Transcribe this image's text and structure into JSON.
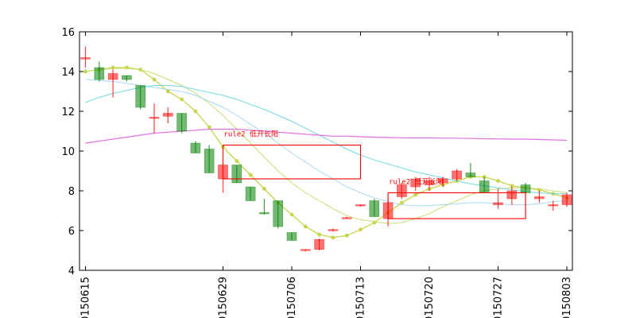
{
  "chart_data": {
    "type": "candlestick",
    "ylim": [
      4,
      16
    ],
    "y_ticks": [
      4,
      6,
      8,
      10,
      12,
      14,
      16
    ],
    "x_tick_labels": [
      {
        "index": 0,
        "label": "20150615"
      },
      {
        "index": 10,
        "label": "20150629"
      },
      {
        "index": 15,
        "label": "20150706"
      },
      {
        "index": 20,
        "label": "20150713"
      },
      {
        "index": 25,
        "label": "20150720"
      },
      {
        "index": 30,
        "label": "20150727"
      },
      {
        "index": 35,
        "label": "20150803"
      }
    ],
    "colors": {
      "up": "#ff0000",
      "down": "#008000"
    },
    "candles": [
      {
        "open": 14.63,
        "high": 15.25,
        "low": 14.2,
        "close": 14.7
      },
      {
        "open": 14.2,
        "high": 14.5,
        "low": 13.5,
        "close": 13.6
      },
      {
        "open": 13.6,
        "high": 14.1,
        "low": 12.7,
        "close": 13.9
      },
      {
        "open": 13.8,
        "high": 13.8,
        "low": 13.5,
        "close": 13.6
      },
      {
        "open": 13.3,
        "high": 13.3,
        "low": 12.1,
        "close": 12.2
      },
      {
        "open": 11.7,
        "high": 12.4,
        "low": 10.9,
        "close": 11.7
      },
      {
        "open": 11.75,
        "high": 12.2,
        "low": 11.4,
        "close": 11.9
      },
      {
        "open": 11.9,
        "high": 11.9,
        "low": 10.9,
        "close": 11.0
      },
      {
        "open": 10.4,
        "high": 10.5,
        "low": 9.9,
        "close": 9.9
      },
      {
        "open": 10.1,
        "high": 10.3,
        "low": 8.9,
        "close": 8.9
      },
      {
        "open": 8.6,
        "high": 9.4,
        "low": 7.9,
        "close": 9.3
      },
      {
        "open": 9.3,
        "high": 9.3,
        "low": 8.4,
        "close": 8.4
      },
      {
        "open": 8.2,
        "high": 8.2,
        "low": 7.5,
        "close": 7.5
      },
      {
        "open": 6.9,
        "high": 7.6,
        "low": 6.8,
        "close": 6.85
      },
      {
        "open": 7.5,
        "high": 7.5,
        "low": 6.1,
        "close": 6.2
      },
      {
        "open": 5.9,
        "high": 5.9,
        "low": 5.5,
        "close": 5.5
      },
      {
        "open": 5.0,
        "high": 5.05,
        "low": 4.95,
        "close": 5.05
      },
      {
        "open": 5.05,
        "high": 5.6,
        "low": 5.0,
        "close": 5.55
      },
      {
        "open": 6.0,
        "high": 6.1,
        "low": 5.95,
        "close": 6.05
      },
      {
        "open": 6.6,
        "high": 6.7,
        "low": 6.6,
        "close": 6.65
      },
      {
        "open": 7.25,
        "high": 7.3,
        "low": 7.2,
        "close": 7.3
      },
      {
        "open": 7.5,
        "high": 7.6,
        "low": 6.7,
        "close": 6.7
      },
      {
        "open": 6.6,
        "high": 7.6,
        "low": 6.2,
        "close": 7.4
      },
      {
        "open": 7.7,
        "high": 8.4,
        "low": 7.6,
        "close": 8.3
      },
      {
        "open": 8.2,
        "high": 8.7,
        "low": 8.0,
        "close": 8.6
      },
      {
        "open": 8.3,
        "high": 8.7,
        "low": 8.0,
        "close": 8.5
      },
      {
        "open": 8.4,
        "high": 8.7,
        "low": 8.2,
        "close": 8.6
      },
      {
        "open": 8.6,
        "high": 9.1,
        "low": 8.5,
        "close": 9.0
      },
      {
        "open": 8.9,
        "high": 9.4,
        "low": 8.7,
        "close": 8.7
      },
      {
        "open": 8.5,
        "high": 8.7,
        "low": 7.9,
        "close": 7.9
      },
      {
        "open": 7.3,
        "high": 8.1,
        "low": 7.1,
        "close": 7.4
      },
      {
        "open": 7.6,
        "high": 8.2,
        "low": 7.3,
        "close": 8.0
      },
      {
        "open": 8.3,
        "high": 8.4,
        "low": 7.8,
        "close": 7.9
      },
      {
        "open": 7.6,
        "high": 8.0,
        "low": 7.4,
        "close": 7.7
      },
      {
        "open": 7.3,
        "high": 7.5,
        "low": 7.0,
        "close": 7.3
      },
      {
        "open": 7.3,
        "high": 7.9,
        "low": 7.2,
        "close": 7.8
      }
    ],
    "lines": [
      {
        "color": "#c8d44a",
        "width": 1.3,
        "markers": true,
        "values": [
          14.0,
          14.1,
          14.2,
          14.2,
          14.1,
          13.6,
          13.0,
          12.6,
          12.0,
          11.2,
          10.2,
          9.5,
          8.8,
          8.1,
          7.4,
          6.8,
          6.2,
          5.8,
          5.65,
          5.75,
          6.05,
          6.4,
          6.9,
          7.4,
          7.8,
          8.1,
          8.3,
          8.5,
          8.7,
          8.7,
          8.5,
          8.25,
          8.15,
          8.05,
          7.85,
          7.65
        ]
      },
      {
        "color": "#c5e070",
        "width": 1.0,
        "markers": false,
        "values": [
          14.0,
          14.1,
          14.15,
          14.15,
          14.1,
          13.9,
          13.6,
          13.3,
          12.9,
          12.4,
          11.8,
          11.1,
          10.4,
          9.7,
          9.0,
          8.4,
          7.9,
          7.5,
          7.1,
          6.75,
          6.55,
          6.45,
          6.35,
          6.4,
          6.6,
          6.85,
          7.2,
          7.5,
          7.8,
          8.0,
          8.1,
          8.15,
          8.15,
          8.1,
          8.0,
          7.9
        ]
      },
      {
        "color": "#a8d8f0",
        "width": 1.0,
        "markers": false,
        "values": [
          13.6,
          13.55,
          13.5,
          13.4,
          13.3,
          13.2,
          13.1,
          13.0,
          12.8,
          12.5,
          12.2,
          11.8,
          11.35,
          10.9,
          10.4,
          9.9,
          9.45,
          9.0,
          8.6,
          8.2,
          7.9,
          7.65,
          7.45,
          7.3,
          7.25,
          7.25,
          7.3,
          7.35,
          7.4,
          7.4,
          7.35,
          7.3,
          7.3,
          7.35,
          7.45,
          7.5
        ]
      },
      {
        "color": "#70d8e0",
        "width": 1.0,
        "markers": false,
        "values": [
          12.45,
          12.7,
          12.9,
          13.05,
          13.2,
          13.3,
          13.3,
          13.25,
          13.1,
          12.95,
          12.8,
          12.6,
          12.35,
          12.1,
          11.8,
          11.5,
          11.15,
          10.8,
          10.45,
          10.1,
          9.8,
          9.55,
          9.35,
          9.15,
          8.95,
          8.8,
          8.65,
          8.5,
          8.35,
          8.25,
          8.15,
          8.05,
          7.95,
          7.9,
          7.85,
          7.85
        ]
      },
      {
        "color": "#e070e0",
        "width": 1.2,
        "markers": false,
        "values": [
          10.4,
          10.5,
          10.6,
          10.7,
          10.8,
          10.9,
          10.95,
          11.0,
          11.05,
          11.1,
          11.1,
          11.1,
          11.05,
          11.0,
          10.95,
          10.9,
          10.85,
          10.8,
          10.75,
          10.75,
          10.72,
          10.7,
          10.68,
          10.67,
          10.66,
          10.66,
          10.65,
          10.65,
          10.63,
          10.62,
          10.61,
          10.6,
          10.6,
          10.58,
          10.56,
          10.54
        ]
      }
    ],
    "annotations": [
      {
        "label": "rule2 低开长阳",
        "x0": 10,
        "x1": 20,
        "y0": 8.6,
        "y1": 10.3,
        "color": "#ff0000"
      },
      {
        "label": "rule2 低开长阳",
        "x0": 22,
        "x1": 32,
        "y0": 6.6,
        "y1": 7.9,
        "color": "#ff0000"
      }
    ]
  }
}
